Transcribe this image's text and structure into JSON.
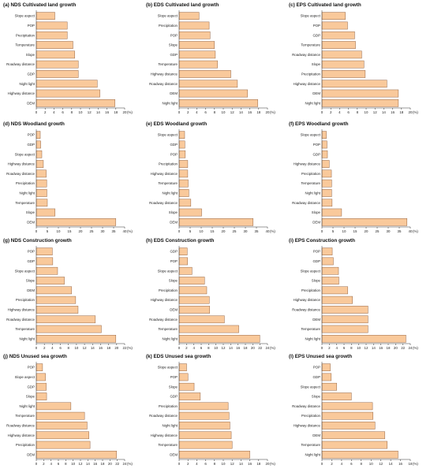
{
  "chart_data": [
    {
      "type": "bar",
      "orientation": "horizontal",
      "title": "(a) NDS Cultivated land growth",
      "categories": [
        "Slope aspect",
        "POP",
        "Precipitation",
        "Temperature",
        "Slope",
        "Roadway distance",
        "GDP",
        "Night light",
        "Highway distance",
        "DEM"
      ],
      "values": [
        4.2,
        7.0,
        7.0,
        8.3,
        8.7,
        9.5,
        9.5,
        13.8,
        14.4,
        17.8
      ],
      "xticks": [
        0,
        2,
        4,
        6,
        8,
        10,
        12,
        14,
        16,
        18,
        20
      ],
      "xlim": [
        0,
        20
      ],
      "unit": "(%)"
    },
    {
      "type": "bar",
      "orientation": "horizontal",
      "title": "(b) EDS Cultivated land growth",
      "categories": [
        "Slope aspect",
        "Precipitation",
        "POP",
        "Slope",
        "GDP",
        "Temperature",
        "Highway distance",
        "Roadway distance",
        "DEM",
        "Night light"
      ],
      "values": [
        4.5,
        6.8,
        7.0,
        8.0,
        8.2,
        8.7,
        11.7,
        13.2,
        15.5,
        17.8
      ],
      "xticks": [
        0,
        2,
        4,
        6,
        8,
        10,
        12,
        14,
        16,
        18,
        20
      ],
      "xlim": [
        0,
        20
      ],
      "unit": "(%)"
    },
    {
      "type": "bar",
      "orientation": "horizontal",
      "title": "(c) EPS Cultivated land growth",
      "categories": [
        "Slope aspect",
        "POP",
        "GDP",
        "Temperature",
        "Roadway distance",
        "Slope",
        "Precipitation",
        "Highway distance",
        "DEM",
        "Night light"
      ],
      "values": [
        5.3,
        5.8,
        7.4,
        7.6,
        9.0,
        9.5,
        9.8,
        14.7,
        17.3,
        17.3
      ],
      "xticks": [
        0,
        2,
        4,
        6,
        8,
        10,
        12,
        14,
        16,
        18,
        20
      ],
      "xlim": [
        0,
        20
      ],
      "unit": "(%)"
    },
    {
      "type": "bar",
      "orientation": "horizontal",
      "title": "(d) NDS Woodland growth",
      "categories": [
        "POP",
        "GDP",
        "Slope aspect",
        "Highway distance",
        "Roadway distance",
        "Precipitation",
        "Night light",
        "Temperature",
        "Slope",
        "DEM"
      ],
      "values": [
        1.8,
        2.0,
        2.5,
        3.2,
        4.5,
        4.7,
        4.8,
        5.0,
        8.5,
        36.0
      ],
      "xticks": [
        0,
        5,
        10,
        15,
        20,
        25,
        30,
        35,
        40
      ],
      "xlim": [
        0,
        40
      ],
      "unit": "(%)"
    },
    {
      "type": "bar",
      "orientation": "horizontal",
      "title": "(e) EDS Woodland growth",
      "categories": [
        "Slope aspect",
        "GDP",
        "POP",
        "Precipitation",
        "Highway distance",
        "Temperature",
        "Night light",
        "Roadway distance",
        "Slope",
        "DEM"
      ],
      "values": [
        2.5,
        2.6,
        2.8,
        3.9,
        3.9,
        4.1,
        4.4,
        5.3,
        10.2,
        33.5
      ],
      "xticks": [
        0,
        5,
        10,
        15,
        20,
        25,
        30,
        35,
        40
      ],
      "xlim": [
        0,
        40
      ],
      "unit": "(%)"
    },
    {
      "type": "bar",
      "orientation": "horizontal",
      "title": "(f) EPS Woodland growth",
      "categories": [
        "Slope aspect",
        "POP",
        "GDP",
        "Highway distance",
        "Precipitation",
        "Temperature",
        "Night light",
        "Roadway distance",
        "Slope",
        "DEM"
      ],
      "values": [
        2.0,
        2.3,
        2.5,
        3.3,
        4.3,
        4.4,
        4.4,
        4.6,
        8.9,
        38.5
      ],
      "xticks": [
        0,
        5,
        10,
        15,
        20,
        25,
        30,
        35,
        40
      ],
      "xlim": [
        0,
        40
      ],
      "unit": "(%)"
    },
    {
      "type": "bar",
      "orientation": "horizontal",
      "title": "(g) NDS Construction growth",
      "categories": [
        "POP",
        "GDP",
        "Slope aspect",
        "Slope",
        "DEM",
        "Precipitation",
        "Highway distance",
        "Roadway distance",
        "Temperature",
        "Night light"
      ],
      "values": [
        4.0,
        4.1,
        5.3,
        7.0,
        8.8,
        9.8,
        10.4,
        14.7,
        16.2,
        19.8
      ],
      "xticks": [
        0,
        2,
        4,
        6,
        8,
        10,
        12,
        14,
        16,
        18,
        20,
        22
      ],
      "xlim": [
        0,
        22
      ],
      "unit": "(%)"
    },
    {
      "type": "bar",
      "orientation": "horizontal",
      "title": "(h) EDS Construction growth",
      "categories": [
        "GDP",
        "POP",
        "Slope aspect",
        "Slope",
        "Precipitation",
        "Highway distance",
        "DEM",
        "Roadway distance",
        "Temperature",
        "Night light"
      ],
      "values": [
        2.2,
        2.3,
        3.5,
        6.9,
        7.5,
        8.2,
        8.3,
        12.3,
        16.2,
        21.9
      ],
      "xticks": [
        0,
        2,
        4,
        6,
        8,
        10,
        12,
        14,
        16,
        18,
        20,
        22,
        24
      ],
      "xlim": [
        0,
        24
      ],
      "unit": "(%)"
    },
    {
      "type": "bar",
      "orientation": "horizontal",
      "title": "(i) EPS Construction growth",
      "categories": [
        "POP",
        "GDP",
        "Slope aspect",
        "Slope",
        "Precipitation",
        "Highway distance",
        "Roadway distance",
        "DEM",
        "Temperature",
        "Night light"
      ],
      "values": [
        2.8,
        3.1,
        4.5,
        4.6,
        7.0,
        8.3,
        12.5,
        12.5,
        12.5,
        22.8
      ],
      "xticks": [
        0,
        2,
        4,
        6,
        8,
        10,
        12,
        14,
        16,
        18,
        20,
        22,
        24
      ],
      "xlim": [
        0,
        24
      ],
      "unit": "(%)"
    },
    {
      "type": "bar",
      "orientation": "horizontal",
      "title": "(j) NDS Unused sea growth",
      "categories": [
        "POP",
        "Slope aspect",
        "GDP",
        "Slope",
        "Night light",
        "Temperature",
        "Roadway distance",
        "Highway distance",
        "Precipitation",
        "DEM"
      ],
      "values": [
        1.7,
        2.5,
        2.7,
        2.8,
        9.4,
        13.1,
        13.8,
        14.3,
        14.6,
        21.8
      ],
      "xticks": [
        0,
        2,
        4,
        6,
        8,
        10,
        12,
        14,
        16,
        18,
        20,
        22,
        24
      ],
      "xlim": [
        0,
        24
      ],
      "unit": "(%)"
    },
    {
      "type": "bar",
      "orientation": "horizontal",
      "title": "(k) EDS Unused sea growth",
      "categories": [
        "Slope aspect",
        "POP",
        "Slope",
        "GDP",
        "Precipitation",
        "Roadway distance",
        "Night light",
        "Highway distance",
        "Temperature",
        "DEM"
      ],
      "values": [
        1.7,
        2.0,
        3.4,
        4.8,
        11.1,
        11.3,
        11.5,
        11.8,
        12.0,
        16.0
      ],
      "xticks": [
        0,
        2,
        4,
        6,
        8,
        10,
        12,
        14,
        16,
        18,
        20
      ],
      "xlim": [
        0,
        20
      ],
      "unit": "(%)"
    },
    {
      "type": "bar",
      "orientation": "horizontal",
      "title": "(l) EPS Unused sea growth",
      "categories": [
        "POP",
        "GDP",
        "Slope aspect",
        "Slope",
        "Roadway distance",
        "Precipitation",
        "Highway distance",
        "DEM",
        "Temperature",
        "Night light"
      ],
      "values": [
        1.7,
        1.9,
        3.0,
        6.0,
        10.3,
        10.4,
        10.8,
        12.8,
        13.3,
        15.5
      ],
      "xticks": [
        0,
        2,
        4,
        6,
        8,
        10,
        12,
        14,
        16,
        18
      ],
      "xlim": [
        0,
        18
      ],
      "unit": "(%)"
    }
  ]
}
